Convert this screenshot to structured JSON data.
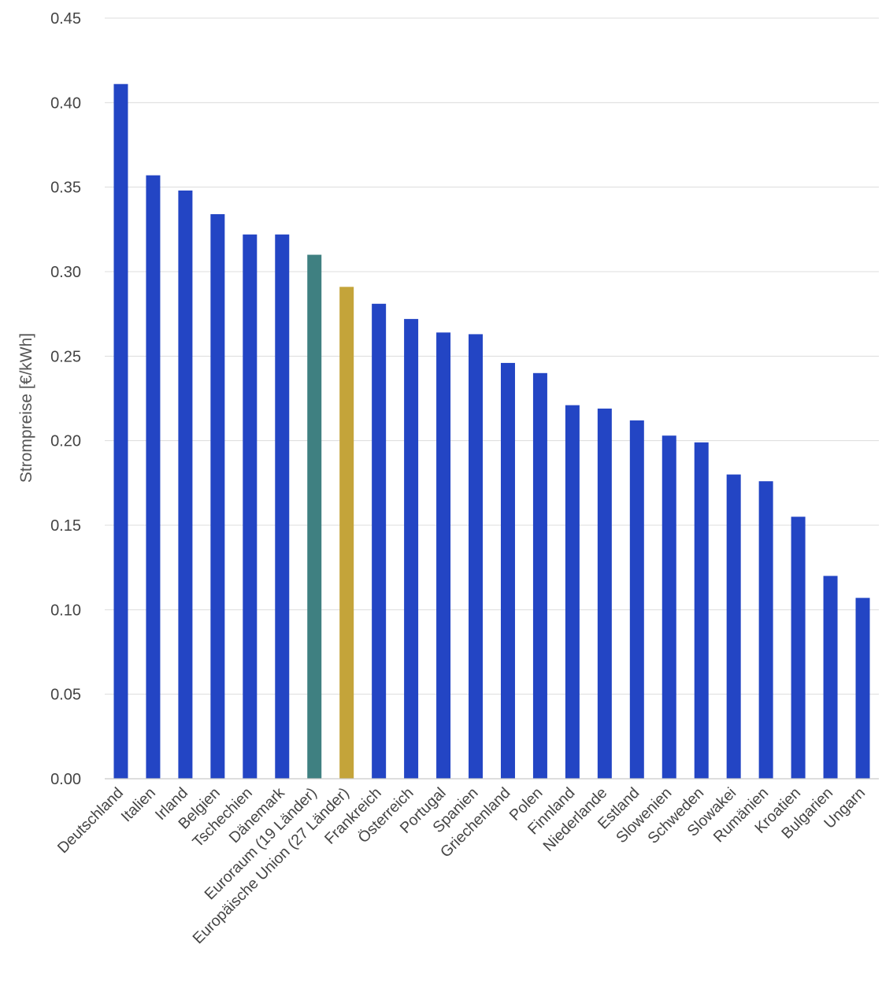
{
  "chart_data": {
    "type": "bar",
    "ylabel": "Strompreise [€/kWh]",
    "ylim": [
      0,
      0.45
    ],
    "yticks": [
      "0.00",
      "0.05",
      "0.10",
      "0.15",
      "0.20",
      "0.25",
      "0.30",
      "0.35",
      "0.40",
      "0.45"
    ],
    "grid": true,
    "legend": "none",
    "categories": [
      "Deutschland",
      "Italien",
      "Irland",
      "Belgien",
      "Tschechien",
      "Dänemark",
      "Euroraum (19 Länder)",
      "Europäische Union (27 Länder)",
      "Frankreich",
      "Österreich",
      "Portugal",
      "Spanien",
      "Griechenland",
      "Polen",
      "Finnland",
      "Niederlande",
      "Estland",
      "Slowenien",
      "Schweden",
      "Slowakei",
      "Rumänien",
      "Kroatien",
      "Bulgarien",
      "Ungarn"
    ],
    "values": [
      0.411,
      0.357,
      0.348,
      0.334,
      0.322,
      0.322,
      0.31,
      0.291,
      0.281,
      0.272,
      0.264,
      0.263,
      0.246,
      0.24,
      0.221,
      0.219,
      0.212,
      0.203,
      0.199,
      0.18,
      0.176,
      0.155,
      0.12,
      0.107
    ],
    "colors": {
      "default": "#2345c4",
      "Euroraum (19 Länder)": "#3f8081",
      "Europäische Union (27 Länder)": "#c4a43a"
    }
  }
}
